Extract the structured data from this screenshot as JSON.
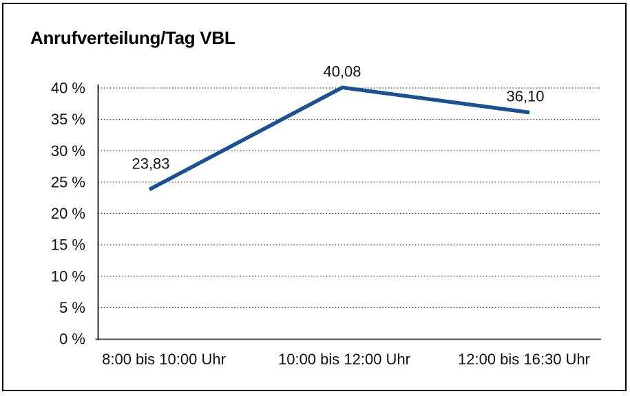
{
  "frame": {
    "border_color": "#000000",
    "background_color": "#ffffff"
  },
  "chart_data": {
    "type": "line",
    "title": "Anrufverteilung/Tag VBL",
    "categories": [
      "8:00 bis 10:00 Uhr",
      "10:00 bis 12:00 Uhr",
      "12:00 bis 16:30 Uhr"
    ],
    "values": [
      23.83,
      40.08,
      36.1
    ],
    "data_labels": [
      "23,83",
      "40,08",
      "36,10"
    ],
    "xlabel": "",
    "ylabel": "",
    "ylim": [
      0,
      40
    ],
    "y_ticks": {
      "values": [
        0,
        5,
        10,
        15,
        20,
        25,
        30,
        35,
        40
      ],
      "labels": [
        "0 %",
        "5 %",
        "10 %",
        "15 %",
        "20 %",
        "25 %",
        "30 %",
        "35 %",
        "40 %"
      ]
    },
    "grid": "horizontal-dotted",
    "legend": "none",
    "line_color": "#1A5193",
    "axis_color": "#111111",
    "gridline_color": "#3c3c3c",
    "text_color": "#111111"
  }
}
